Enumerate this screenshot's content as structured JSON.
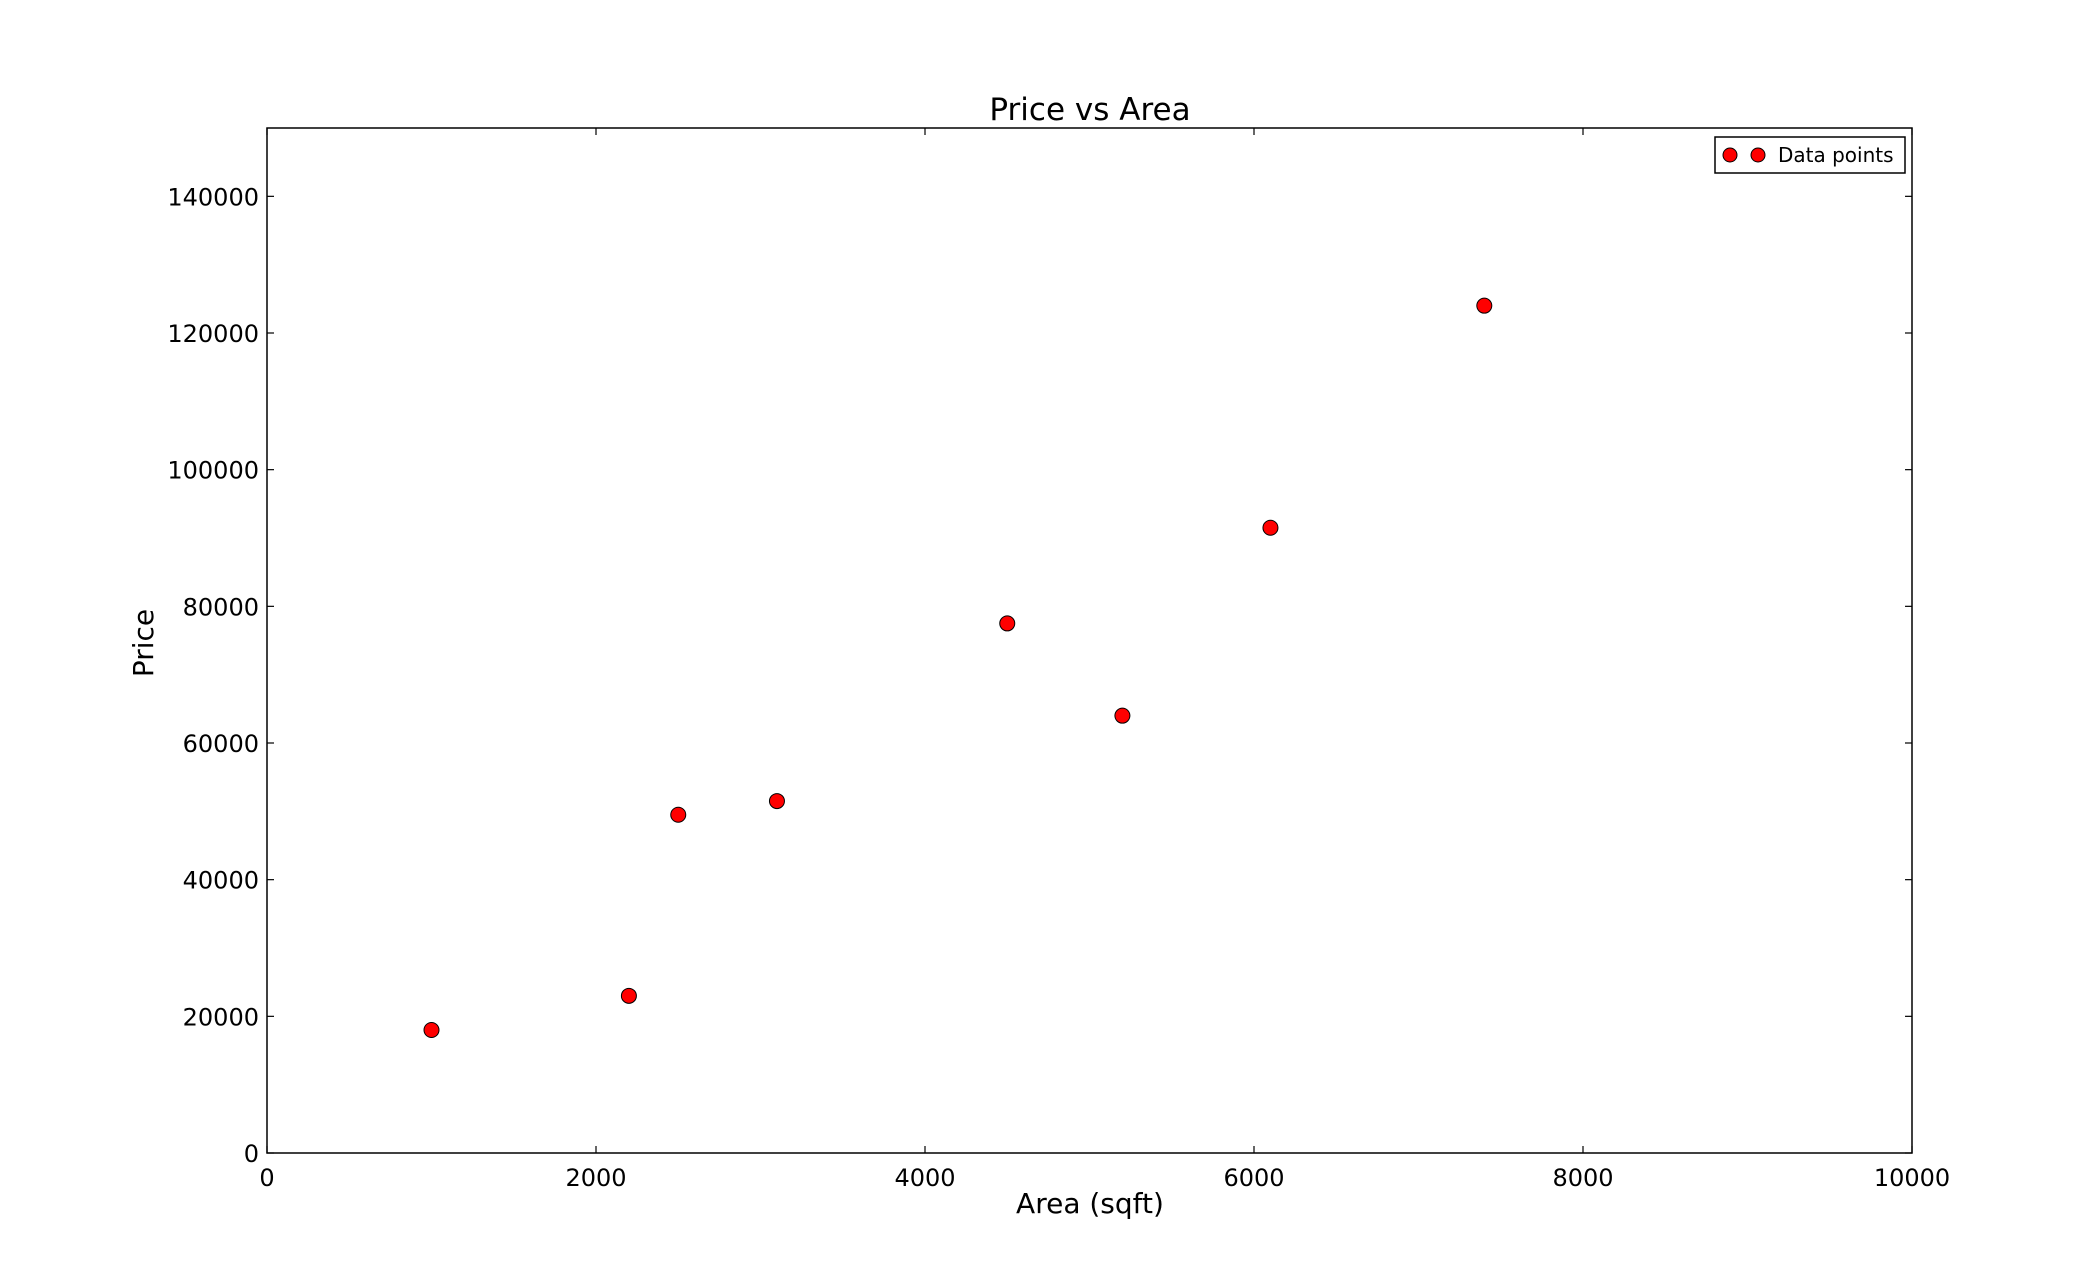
{
  "chart_data": {
    "type": "scatter",
    "title": "Price vs Area",
    "xlabel": "Area (sqft)",
    "ylabel": "Price",
    "xlim": [
      0,
      10000
    ],
    "ylim": [
      0,
      150000
    ],
    "xticks": [
      0,
      2000,
      4000,
      6000,
      8000,
      10000
    ],
    "yticks": [
      0,
      20000,
      40000,
      60000,
      80000,
      100000,
      120000,
      140000
    ],
    "grid": false,
    "legend_position": "top-right",
    "series": [
      {
        "name": "Data points",
        "color": "#ff0000",
        "marker": "circle",
        "points": [
          {
            "x": 1000,
            "y": 18000
          },
          {
            "x": 2200,
            "y": 23000
          },
          {
            "x": 2500,
            "y": 49500
          },
          {
            "x": 3100,
            "y": 51500
          },
          {
            "x": 4500,
            "y": 77500
          },
          {
            "x": 5200,
            "y": 64000
          },
          {
            "x": 6100,
            "y": 91500
          },
          {
            "x": 7400,
            "y": 124000
          }
        ]
      }
    ]
  }
}
